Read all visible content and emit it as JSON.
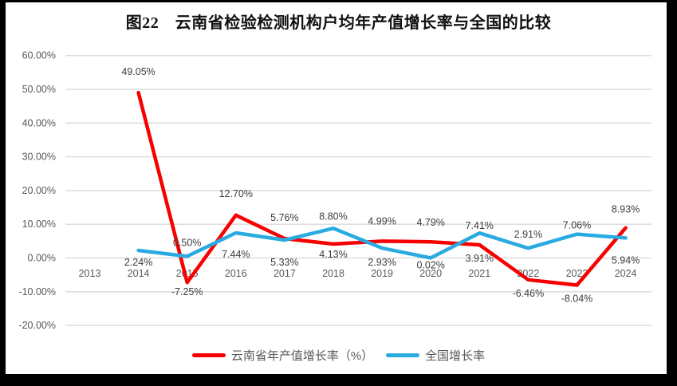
{
  "title": "图22　云南省检验检测机构户均年产值增长率与全国的比较",
  "colors": {
    "yunnan_line": "#f80000",
    "national_line": "#29abe2",
    "gridline": "#d9d9d9",
    "axis_text": "#595959",
    "data_label_text": "#3d3d3d",
    "frame": "#000000",
    "chart_background": "#ffffff"
  },
  "chart_data": {
    "type": "line",
    "categories": [
      "2013",
      "2014",
      "2015",
      "2016",
      "2017",
      "2018",
      "2019",
      "2020",
      "2021",
      "2022",
      "2023",
      "2024"
    ],
    "y_ticks": [
      "60.00%",
      "50.00%",
      "40.00%",
      "30.00%",
      "20.00%",
      "10.00%",
      "0.00%",
      "-10.00%",
      "-20.00%"
    ],
    "y_tick_values": [
      60,
      50,
      40,
      30,
      20,
      10,
      0,
      -10,
      -20
    ],
    "ylim": [
      -20,
      60
    ],
    "grid": true,
    "legend_position": "bottom",
    "series": [
      {
        "name": "云南省年产值增长率（%）",
        "color": "#f80000",
        "values": [
          null,
          49.05,
          -7.25,
          12.7,
          5.76,
          4.13,
          4.99,
          4.79,
          3.91,
          -6.46,
          -8.04,
          8.93
        ],
        "labels": [
          null,
          "49.05%",
          "-7.25%",
          "12.70%",
          "5.76%",
          "4.13%",
          "4.99%",
          "4.79%",
          "3.91%",
          "-6.46%",
          "-8.04%",
          "8.93%"
        ],
        "label_dy": [
          null,
          -26,
          12,
          -27,
          -26,
          13,
          -25,
          -24,
          17,
          17,
          17,
          -23
        ]
      },
      {
        "name": "全国增长率",
        "color": "#29abe2",
        "values": [
          null,
          2.24,
          0.5,
          7.44,
          5.33,
          8.8,
          2.93,
          0.02,
          7.41,
          2.91,
          7.06,
          5.94
        ],
        "labels": [
          null,
          "2.24%",
          "0.50%",
          "7.44%",
          "5.33%",
          "8.80%",
          "2.93%",
          "0.02%",
          "7.41%",
          "2.91%",
          "7.06%",
          "5.94%"
        ],
        "label_dy": [
          null,
          15,
          -17,
          27,
          28,
          -15,
          18,
          9,
          -9,
          -17,
          -11,
          28
        ]
      }
    ]
  }
}
